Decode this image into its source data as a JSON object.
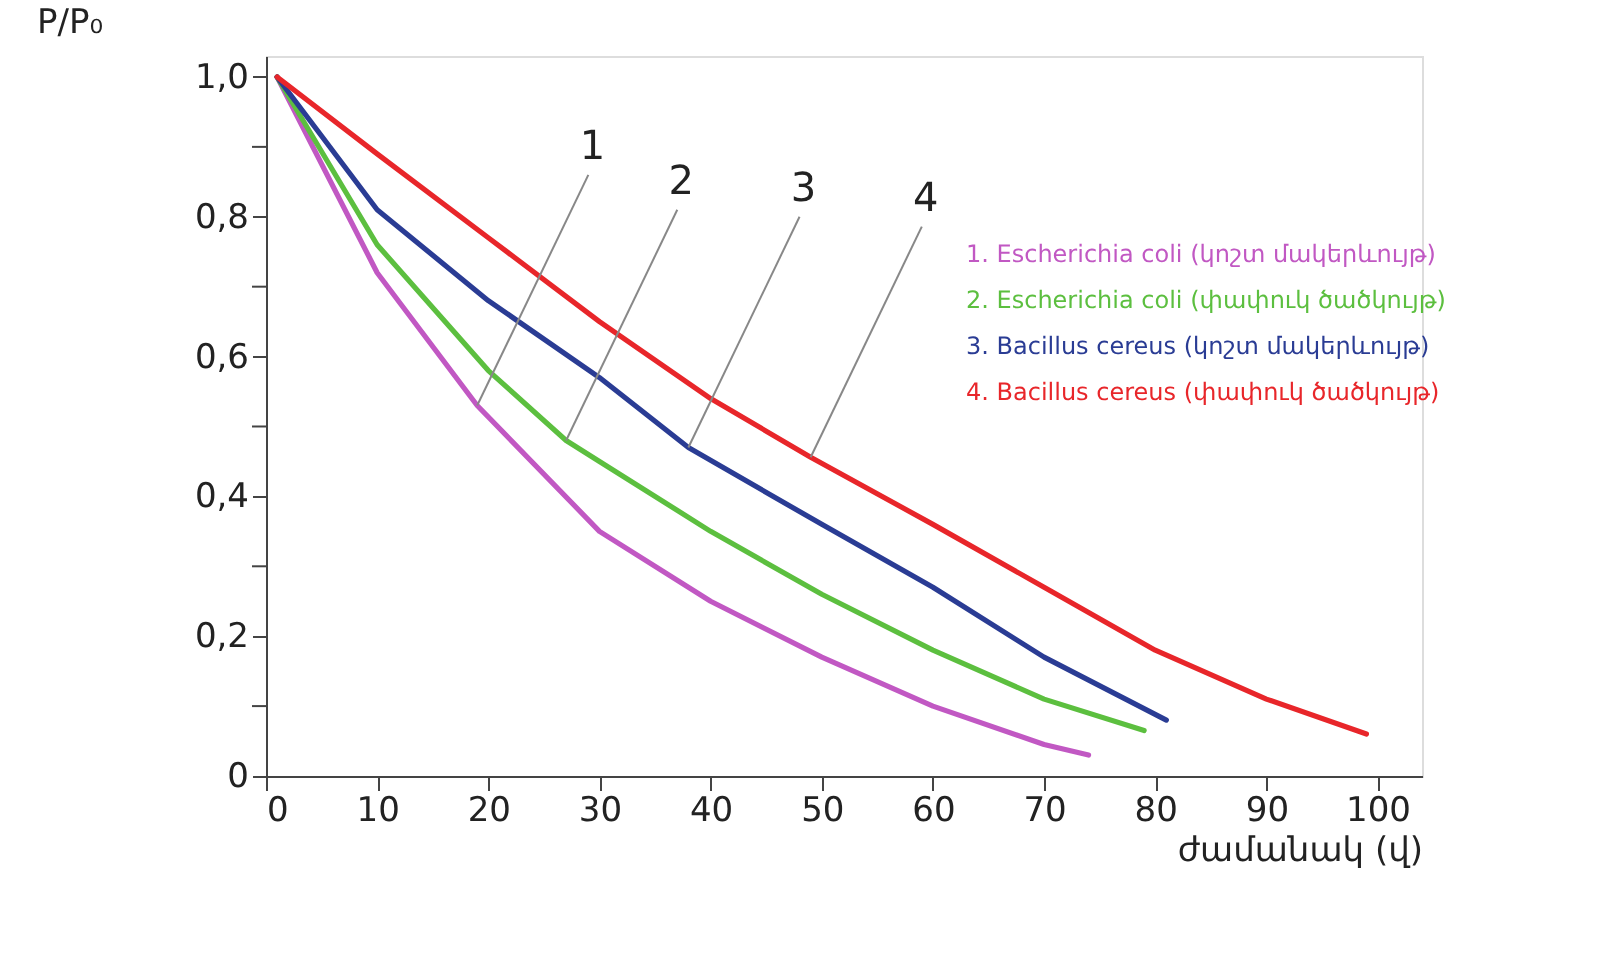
{
  "chart_data": {
    "type": "line",
    "xlabel": "ժամանակ (վ)",
    "ylabel": "P/P₀",
    "xlim": [
      0,
      104
    ],
    "ylim": [
      0,
      1.03
    ],
    "xticks": [
      0,
      10,
      20,
      30,
      40,
      50,
      60,
      70,
      80,
      90,
      100
    ],
    "yticks": [
      0,
      {
        "value": 0.1,
        "label": null
      },
      {
        "value": 0.2,
        "label": "0,2"
      },
      {
        "value": 0.3,
        "label": null
      },
      {
        "value": 0.4,
        "label": "0,4"
      },
      {
        "value": 0.5,
        "label": null
      },
      {
        "value": 0.6,
        "label": "0,6"
      },
      {
        "value": 0.7,
        "label": null
      },
      {
        "value": 0.8,
        "label": "0,8"
      },
      {
        "value": 0.9,
        "label": null
      },
      {
        "value": 1.0,
        "label": "1,0"
      }
    ],
    "grid": false,
    "legend": "right",
    "marker": "none",
    "line_style": "solid",
    "series": [
      {
        "name": "1. Escherichia coli (կոշտ մակերևույթ)",
        "color": "#c158c3",
        "x": [
          1,
          10,
          19,
          30,
          40,
          50,
          60,
          70,
          74
        ],
        "values": [
          1.0,
          0.72,
          0.53,
          0.35,
          0.25,
          0.17,
          0.1,
          0.045,
          0.03
        ]
      },
      {
        "name": "2. Escherichia coli (փափուկ ծածկույթ)",
        "color": "#5cbf3f",
        "x": [
          1,
          10,
          20,
          27,
          30,
          40,
          50,
          60,
          70,
          79
        ],
        "values": [
          1.0,
          0.76,
          0.58,
          0.48,
          0.45,
          0.35,
          0.26,
          0.18,
          0.11,
          0.065
        ]
      },
      {
        "name": "3. Bacillus cereus  (կոշտ մակերևույթ)",
        "color": "#2a3c94",
        "x": [
          1,
          10,
          20,
          30,
          38,
          50,
          60,
          70,
          81
        ],
        "values": [
          1.0,
          0.81,
          0.68,
          0.57,
          0.47,
          0.36,
          0.27,
          0.17,
          0.08
        ]
      },
      {
        "name": "4. Bacillus cereus  (փափուկ ծածկույթ)",
        "color": "#e8262a",
        "x": [
          1,
          10,
          20,
          30,
          40,
          49,
          60,
          70,
          80,
          90,
          99
        ],
        "values": [
          1.0,
          0.89,
          0.77,
          0.65,
          0.54,
          0.456,
          0.36,
          0.27,
          0.18,
          0.11,
          0.06
        ]
      }
    ],
    "annotations": [
      {
        "text": "1",
        "x": 19,
        "y": 0.53
      },
      {
        "text": "2",
        "x": 27,
        "y": 0.48
      },
      {
        "text": "3",
        "x": 38,
        "y": 0.47
      },
      {
        "text": "4",
        "x": 49,
        "y": 0.456
      }
    ]
  }
}
